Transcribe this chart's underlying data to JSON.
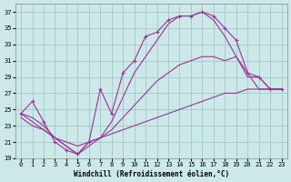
{
  "xlabel": "Windchill (Refroidissement éolien,°C)",
  "ylabel": "",
  "bg_color": "#cce8e8",
  "grid_color": "#aacccc",
  "line_color": "#993399",
  "xlim": [
    -0.5,
    23.5
  ],
  "ylim": [
    19,
    38
  ],
  "xticks": [
    0,
    1,
    2,
    3,
    4,
    5,
    6,
    7,
    8,
    9,
    10,
    11,
    12,
    13,
    14,
    15,
    16,
    17,
    18,
    19,
    20,
    21,
    22,
    23
  ],
  "yticks": [
    19,
    21,
    23,
    25,
    27,
    29,
    31,
    33,
    35,
    37
  ],
  "series": [
    {
      "x": [
        0,
        1,
        2,
        3,
        4,
        5,
        6,
        7,
        8,
        9,
        10,
        11,
        12,
        13,
        14,
        15,
        16,
        17,
        18,
        19,
        20,
        21,
        22,
        23
      ],
      "y": [
        24.5,
        26.0,
        23.5,
        21.0,
        20.0,
        19.5,
        21.0,
        27.5,
        24.5,
        29.5,
        31.0,
        34.0,
        34.5,
        36.0,
        36.5,
        36.5,
        37.0,
        36.5,
        35.0,
        33.5,
        29.5,
        29.0,
        27.5,
        27.5
      ],
      "marker": true
    },
    {
      "x": [
        0,
        1,
        2,
        3,
        4,
        5,
        6,
        7,
        8,
        9,
        10,
        11,
        12,
        13,
        14,
        15,
        16,
        17,
        18,
        19,
        20,
        21,
        22,
        23
      ],
      "y": [
        24.5,
        24.0,
        23.0,
        21.5,
        20.5,
        19.5,
        21.0,
        21.5,
        23.5,
        26.5,
        29.5,
        31.5,
        33.5,
        35.5,
        36.5,
        36.5,
        37.0,
        36.0,
        34.0,
        31.5,
        29.0,
        29.0,
        27.5,
        27.5
      ],
      "marker": false
    },
    {
      "x": [
        0,
        1,
        2,
        3,
        4,
        5,
        6,
        7,
        8,
        9,
        10,
        11,
        12,
        13,
        14,
        15,
        16,
        17,
        18,
        19,
        20,
        21,
        22,
        23
      ],
      "y": [
        24.5,
        23.5,
        22.5,
        21.5,
        20.5,
        19.5,
        20.5,
        21.5,
        22.5,
        24.0,
        25.5,
        27.0,
        28.5,
        29.5,
        30.5,
        31.0,
        31.5,
        31.5,
        31.0,
        31.5,
        29.5,
        27.5,
        27.5,
        27.5
      ],
      "marker": false
    },
    {
      "x": [
        0,
        1,
        2,
        3,
        4,
        5,
        6,
        7,
        8,
        9,
        10,
        11,
        12,
        13,
        14,
        15,
        16,
        17,
        18,
        19,
        20,
        21,
        22,
        23
      ],
      "y": [
        24.0,
        23.0,
        22.5,
        21.5,
        21.0,
        20.5,
        21.0,
        21.5,
        22.0,
        22.5,
        23.0,
        23.5,
        24.0,
        24.5,
        25.0,
        25.5,
        26.0,
        26.5,
        27.0,
        27.0,
        27.5,
        27.5,
        27.5,
        27.5
      ],
      "marker": false
    }
  ]
}
